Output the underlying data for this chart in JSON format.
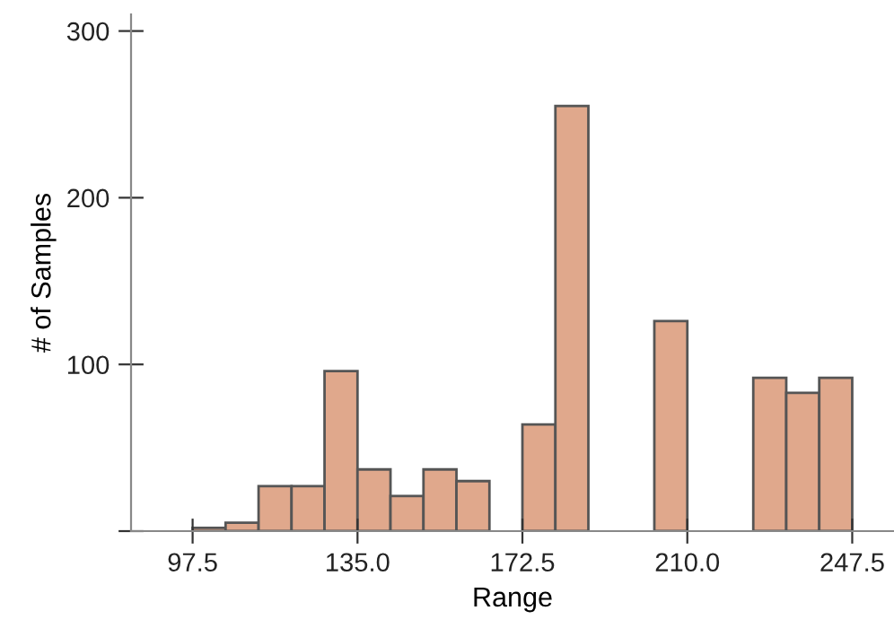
{
  "chart_data": {
    "type": "histogram",
    "xlabel": "Range",
    "ylabel": "# of Samples",
    "bins": [
      97.5,
      105,
      112.5,
      120,
      127.5,
      135,
      142.5,
      150,
      157.5,
      165,
      172.5,
      180,
      187.5,
      195,
      202.5,
      210,
      217.5,
      225,
      232.5,
      240,
      247.5
    ],
    "values": [
      2,
      5,
      27,
      27,
      96,
      37,
      21,
      37,
      30,
      0,
      64,
      255,
      0,
      0,
      126,
      0,
      0,
      92,
      83,
      92
    ],
    "color": "#e0a88c",
    "xlim": [
      83.5,
      257
    ],
    "xticks": [
      {
        "value": 97.5,
        "label": "97.5"
      },
      {
        "value": 135,
        "label": "135.0"
      },
      {
        "value": 172.5,
        "label": "172.5"
      },
      {
        "value": 210,
        "label": "210.0"
      },
      {
        "value": 247.5,
        "label": "247.5"
      }
    ],
    "ylim": [
      0,
      310
    ],
    "yticks": [
      {
        "value": 0,
        "label": null
      },
      100,
      200,
      300
    ],
    "grid": false
  }
}
